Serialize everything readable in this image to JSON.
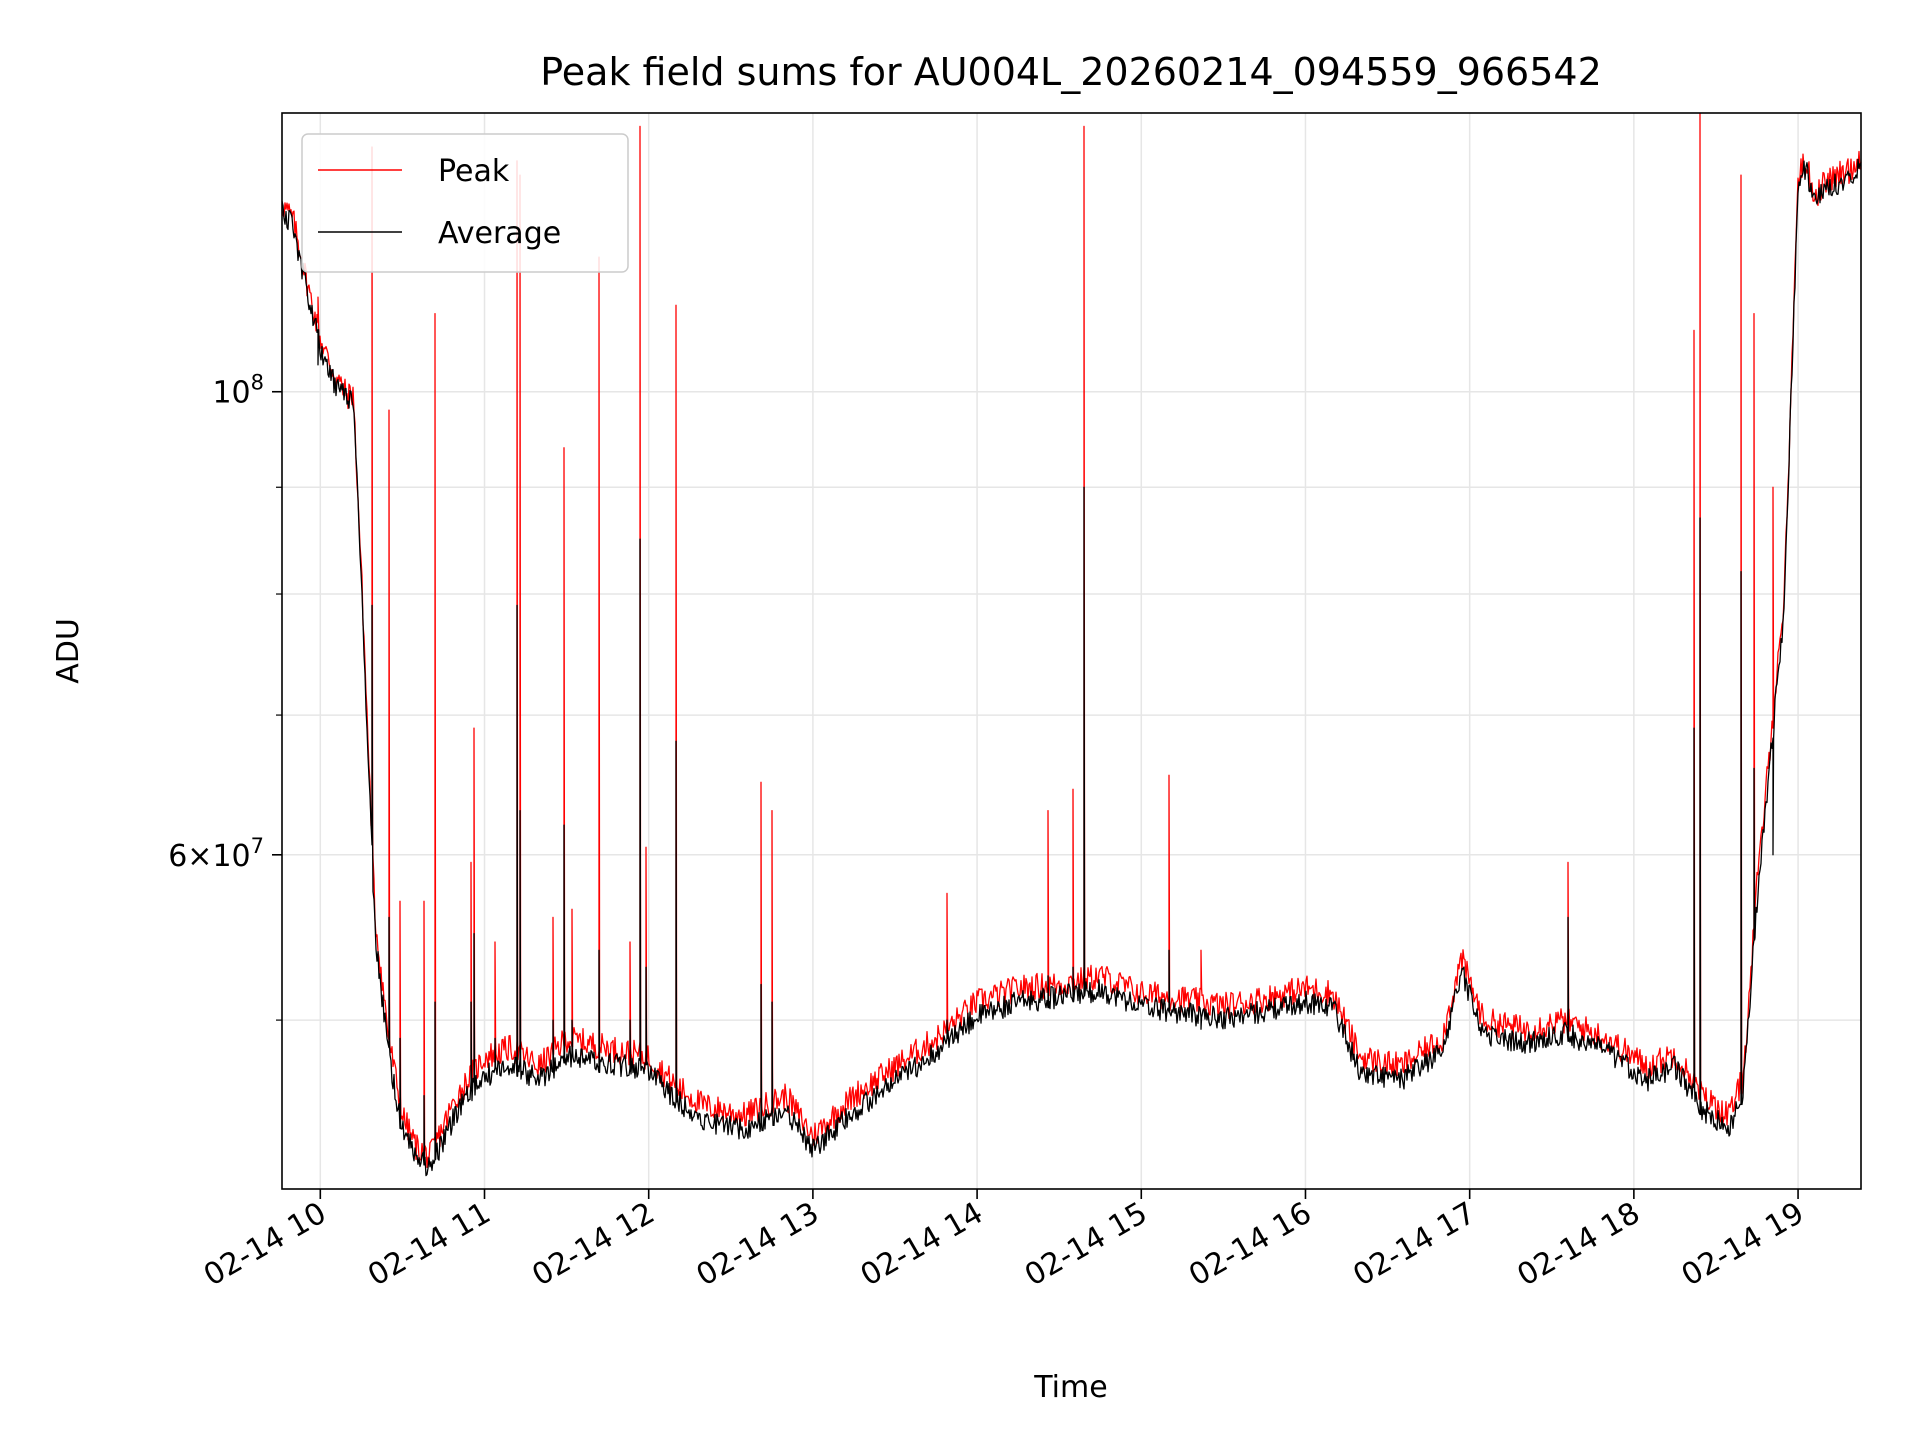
{
  "chart_data": {
    "type": "line",
    "title": "Peak field sums for AU004L_20260214_094559_966542",
    "xlabel": "Time",
    "ylabel": "ADU",
    "yscale": "log",
    "grid": true,
    "legend_position": "upper-left",
    "xlim": [
      "02-14 09:46",
      "02-14 19:23"
    ],
    "ylim": [
      41500000,
      136000000
    ],
    "x_ticks": [
      {
        "value": "02-14 10:00",
        "label": "02-14 10"
      },
      {
        "value": "02-14 11:00",
        "label": "02-14 11"
      },
      {
        "value": "02-14 12:00",
        "label": "02-14 12"
      },
      {
        "value": "02-14 13:00",
        "label": "02-14 13"
      },
      {
        "value": "02-14 14:00",
        "label": "02-14 14"
      },
      {
        "value": "02-14 15:00",
        "label": "02-14 15"
      },
      {
        "value": "02-14 16:00",
        "label": "02-14 16"
      },
      {
        "value": "02-14 17:00",
        "label": "02-14 17"
      },
      {
        "value": "02-14 18:00",
        "label": "02-14 18"
      },
      {
        "value": "02-14 19:00",
        "label": "02-14 19"
      }
    ],
    "y_major_ticks": [
      {
        "value": 100000000,
        "base": "10",
        "exp": "8"
      },
      {
        "value": 60000000,
        "mant": "6",
        "base": "10",
        "exp": "7"
      }
    ],
    "y_minor_ticks": [
      50000000,
      70000000,
      80000000,
      90000000
    ],
    "baseline": {
      "x": [
        "02-14 09:46",
        "02-14 09:50",
        "02-14 09:55",
        "02-14 10:00",
        "02-14 10:05",
        "02-14 10:10",
        "02-14 10:12",
        "02-14 10:15",
        "02-14 10:20",
        "02-14 10:25",
        "02-14 10:30",
        "02-14 10:35",
        "02-14 10:40",
        "02-14 10:45",
        "02-14 10:50",
        "02-14 10:55",
        "02-14 11:00",
        "02-14 11:10",
        "02-14 11:20",
        "02-14 11:30",
        "02-14 11:45",
        "02-14 12:00",
        "02-14 12:10",
        "02-14 12:20",
        "02-14 12:35",
        "02-14 12:50",
        "02-14 13:00",
        "02-14 13:15",
        "02-14 13:30",
        "02-14 13:45",
        "02-14 14:00",
        "02-14 14:15",
        "02-14 14:30",
        "02-14 14:45",
        "02-14 15:00",
        "02-14 15:15",
        "02-14 15:30",
        "02-14 15:45",
        "02-14 16:00",
        "02-14 16:10",
        "02-14 16:20",
        "02-14 16:35",
        "02-14 16:50",
        "02-14 16:57",
        "02-14 17:05",
        "02-14 17:20",
        "02-14 17:35",
        "02-14 17:50",
        "02-14 18:05",
        "02-14 18:15",
        "02-14 18:25",
        "02-14 18:35",
        "02-14 18:40",
        "02-14 18:45",
        "02-14 18:55",
        "02-14 19:00",
        "02-14 19:03",
        "02-14 19:06",
        "02-14 19:10",
        "02-14 19:15",
        "02-14 19:20",
        "02-14 19:23"
      ],
      "peak": [
        123000000,
        121000000,
        113000000,
        106000000,
        102000000,
        99500000,
        100000000,
        82000000,
        56000000,
        49000000,
        45000000,
        43500000,
        43000000,
        44500000,
        46000000,
        47000000,
        48000000,
        48500000,
        47500000,
        49000000,
        48500000,
        48000000,
        46500000,
        45500000,
        45000000,
        46000000,
        44000000,
        46000000,
        47500000,
        49000000,
        51000000,
        51800000,
        52000000,
        52500000,
        51500000,
        51200000,
        50800000,
        51200000,
        51800000,
        51500000,
        48000000,
        47500000,
        49000000,
        53500000,
        50000000,
        49500000,
        50000000,
        49000000,
        47500000,
        48200000,
        46000000,
        45000000,
        47000000,
        58000000,
        80000000,
        127000000,
        129000000,
        124000000,
        126000000,
        127000000,
        128000000,
        130000000
      ],
      "avg": [
        122500000,
        120000000,
        112000000,
        105000000,
        101000000,
        99000000,
        99500000,
        81000000,
        55000000,
        48000000,
        44300000,
        43000000,
        42500000,
        43800000,
        45200000,
        46200000,
        47000000,
        47600000,
        46800000,
        48100000,
        47700000,
        47300000,
        45800000,
        44800000,
        44300000,
        45300000,
        43300000,
        45200000,
        46700000,
        48300000,
        50200000,
        51000000,
        51300000,
        51700000,
        50800000,
        50400000,
        50100000,
        50500000,
        51000000,
        50800000,
        47200000,
        46800000,
        48300000,
        52800000,
        49300000,
        48700000,
        49300000,
        48300000,
        46800000,
        47500000,
        45300000,
        44300000,
        46300000,
        57000000,
        79000000,
        126000000,
        128000000,
        123000000,
        125000000,
        126000000,
        127000000,
        129000000
      ]
    },
    "spikes": [
      {
        "x": "02-14 09:59",
        "peak": 111000000,
        "avg": 103000000
      },
      {
        "x": "02-14 10:19",
        "peak": 131000000,
        "avg": 79000000
      },
      {
        "x": "02-14 10:25",
        "peak": 98000000,
        "avg": 56000000
      },
      {
        "x": "02-14 10:29",
        "peak": 57000000,
        "avg": 49000000
      },
      {
        "x": "02-14 10:38",
        "peak": 57000000,
        "avg": 46000000
      },
      {
        "x": "02-14 10:42",
        "peak": 109000000,
        "avg": 51000000
      },
      {
        "x": "02-14 10:55",
        "peak": 59500000,
        "avg": 51000000
      },
      {
        "x": "02-14 10:56",
        "peak": 69000000,
        "avg": 55000000
      },
      {
        "x": "02-14 11:04",
        "peak": 54500000,
        "avg": 49000000
      },
      {
        "x": "02-14 11:12",
        "peak": 129000000,
        "avg": 79000000
      },
      {
        "x": "02-14 11:13",
        "peak": 127000000,
        "avg": 63000000
      },
      {
        "x": "02-14 11:25",
        "peak": 56000000,
        "avg": 50000000
      },
      {
        "x": "02-14 11:29",
        "peak": 94000000,
        "avg": 62000000
      },
      {
        "x": "02-14 11:32",
        "peak": 56500000,
        "avg": 50000000
      },
      {
        "x": "02-14 11:42",
        "peak": 116000000,
        "avg": 54000000
      },
      {
        "x": "02-14 11:53",
        "peak": 54500000,
        "avg": 50000000
      },
      {
        "x": "02-14 11:57",
        "peak": 134000000,
        "avg": 85000000
      },
      {
        "x": "02-14 11:59",
        "peak": 60500000,
        "avg": 53000000
      },
      {
        "x": "02-14 12:10",
        "peak": 110000000,
        "avg": 68000000
      },
      {
        "x": "02-14 12:41",
        "peak": 65000000,
        "avg": 52000000
      },
      {
        "x": "02-14 12:45",
        "peak": 63000000,
        "avg": 51000000
      },
      {
        "x": "02-14 13:49",
        "peak": 57500000,
        "avg": 50000000
      },
      {
        "x": "02-14 14:26",
        "peak": 63000000,
        "avg": 52500000
      },
      {
        "x": "02-14 14:35",
        "peak": 64500000,
        "avg": 53000000
      },
      {
        "x": "02-14 14:39",
        "peak": 134000000,
        "avg": 90000000
      },
      {
        "x": "02-14 15:10",
        "peak": 65500000,
        "avg": 54000000
      },
      {
        "x": "02-14 15:22",
        "peak": 54000000,
        "avg": 49500000
      },
      {
        "x": "02-14 17:36",
        "peak": 59500000,
        "avg": 56000000
      },
      {
        "x": "02-14 18:22",
        "peak": 107000000,
        "avg": 69000000
      },
      {
        "x": "02-14 18:24",
        "peak": 137000000,
        "avg": 87000000
      },
      {
        "x": "02-14 18:39",
        "peak": 127000000,
        "avg": 82000000
      },
      {
        "x": "02-14 18:44",
        "peak": 109000000,
        "avg": 66000000
      },
      {
        "x": "02-14 18:51",
        "peak": 90000000,
        "avg": 60000000
      }
    ],
    "series": [
      {
        "name": "Peak",
        "color": "#ff0000",
        "key": "peak"
      },
      {
        "name": "Average",
        "color": "#000000",
        "key": "avg"
      }
    ]
  }
}
